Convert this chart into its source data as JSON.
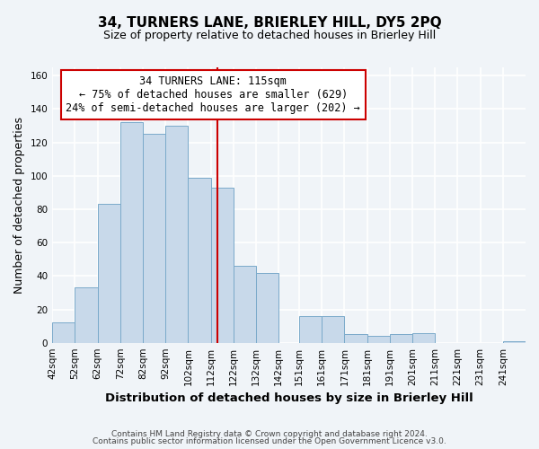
{
  "title": "34, TURNERS LANE, BRIERLEY HILL, DY5 2PQ",
  "subtitle": "Size of property relative to detached houses in Brierley Hill",
  "xlabel": "Distribution of detached houses by size in Brierley Hill",
  "ylabel": "Number of detached properties",
  "bar_edges": [
    42,
    52,
    62,
    72,
    82,
    92,
    102,
    112,
    122,
    132,
    142,
    151,
    161,
    171,
    181,
    191,
    201,
    211,
    221,
    231,
    241
  ],
  "bar_heights": [
    12,
    33,
    83,
    132,
    125,
    130,
    99,
    93,
    46,
    42,
    0,
    16,
    16,
    5,
    4,
    5,
    6,
    0,
    0,
    0,
    1
  ],
  "bar_color": "#c8d9ea",
  "bar_edge_color": "#7aaaca",
  "property_line_x": 115,
  "property_line_color": "#cc0000",
  "annotation_line1": "34 TURNERS LANE: 115sqm",
  "annotation_line2": "← 75% of detached houses are smaller (629)",
  "annotation_line3": "24% of semi-detached houses are larger (202) →",
  "annotation_box_color": "#ffffff",
  "annotation_box_edge_color": "#cc0000",
  "ylim": [
    0,
    165
  ],
  "yticks": [
    0,
    20,
    40,
    60,
    80,
    100,
    120,
    140,
    160
  ],
  "tick_labels": [
    "42sqm",
    "52sqm",
    "62sqm",
    "72sqm",
    "82sqm",
    "92sqm",
    "102sqm",
    "112sqm",
    "122sqm",
    "132sqm",
    "142sqm",
    "151sqm",
    "161sqm",
    "171sqm",
    "181sqm",
    "191sqm",
    "201sqm",
    "211sqm",
    "221sqm",
    "231sqm",
    "241sqm"
  ],
  "footer_line1": "Contains HM Land Registry data © Crown copyright and database right 2024.",
  "footer_line2": "Contains public sector information licensed under the Open Government Licence v3.0.",
  "background_color": "#f0f4f8",
  "grid_color": "#ffffff",
  "title_fontsize": 11,
  "subtitle_fontsize": 9,
  "axis_label_fontsize": 9,
  "tick_fontsize": 7.5,
  "annotation_fontsize": 8.5,
  "footer_fontsize": 6.5
}
